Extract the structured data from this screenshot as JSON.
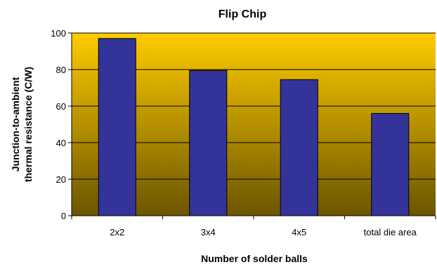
{
  "chart_data": {
    "type": "bar",
    "title": "Flip Chip",
    "xlabel": "Number of solder balls",
    "ylabel_lines": [
      "Junction-to-ambient",
      "thermal resistance (C/W)"
    ],
    "categories": [
      "2x2",
      "3x4",
      "4x5",
      "total die area"
    ],
    "values": [
      97,
      79.5,
      74.5,
      56
    ],
    "ylim": [
      0,
      100
    ],
    "yticks": [
      0,
      20,
      40,
      60,
      80,
      100
    ],
    "grid": true,
    "legend": "none",
    "colors": {
      "bar": "#333399",
      "plot_top": "#ffcc00",
      "plot_bottom": "#6b5500"
    }
  }
}
